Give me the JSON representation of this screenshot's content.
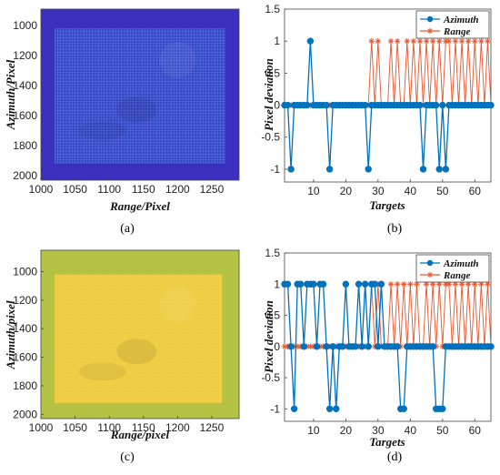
{
  "chart_data": [
    {
      "panel": "a",
      "type": "heatmap",
      "caption": "(a)",
      "xlabel": "Range/Pixel",
      "ylabel": "Azimuth/Pixel",
      "xlim": [
        1000,
        1290
      ],
      "ylim": [
        2030,
        890
      ],
      "xticks": [
        1000,
        1050,
        1100,
        1150,
        1200,
        1250
      ],
      "yticks": [
        1000,
        1200,
        1400,
        1600,
        1800,
        2000
      ],
      "inner_box": {
        "x": [
          1020,
          1270
        ],
        "y": [
          1020,
          1920
        ]
      },
      "colors": {
        "background": "#3a2fbf",
        "grid": "#5aa6e6",
        "inner": "#3d45c8"
      }
    },
    {
      "panel": "b",
      "type": "line",
      "caption": "(b)",
      "xlabel": "Targets",
      "ylabel": "Pixel deviation",
      "xlim": [
        1,
        65
      ],
      "ylim": [
        -1.2,
        1.5
      ],
      "xticks": [
        10,
        20,
        30,
        40,
        50,
        60
      ],
      "yticks": [
        -1,
        -0.5,
        0,
        0.5,
        1,
        1.5
      ],
      "legend": "top-right",
      "series": [
        {
          "name": "Azimuth",
          "color": "#0072bd",
          "marker": "circle",
          "values": [
            0,
            0,
            -1,
            0,
            0,
            0,
            0,
            0,
            1,
            0,
            0,
            0,
            0,
            0,
            -1,
            0,
            0,
            0,
            0,
            0,
            0,
            0,
            0,
            0,
            0,
            0,
            -1,
            0,
            0,
            0,
            0,
            0,
            0,
            0,
            0,
            0,
            0,
            0,
            0,
            0,
            0,
            0,
            0,
            -1,
            0,
            0,
            0,
            0,
            -1,
            0,
            -1,
            0,
            0,
            0,
            0,
            0,
            0,
            0,
            0,
            0,
            0,
            0,
            0,
            0,
            0
          ]
        },
        {
          "name": "Range",
          "color": "#e8542c",
          "marker": "star",
          "values": [
            0,
            0,
            0,
            0,
            0,
            0,
            0,
            0,
            0,
            0,
            0,
            0,
            0,
            0,
            0,
            0,
            0,
            0,
            0,
            0,
            0,
            0,
            0,
            0,
            0,
            0,
            0,
            1,
            0,
            1,
            0,
            0,
            0,
            1,
            0,
            1,
            0,
            0,
            1,
            0,
            1,
            0,
            1,
            0,
            1,
            0,
            1,
            0,
            1,
            0,
            1,
            1,
            0,
            1,
            0,
            1,
            0,
            1,
            0,
            1,
            0,
            1,
            0,
            1,
            0
          ]
        }
      ]
    },
    {
      "panel": "c",
      "type": "heatmap",
      "caption": "(c)",
      "xlabel": "Range/pixel",
      "ylabel": "Azimuth/pixel",
      "xlim": [
        1000,
        1290
      ],
      "ylim": [
        2030,
        850
      ],
      "xticks": [
        1000,
        1050,
        1100,
        1150,
        1200,
        1250
      ],
      "yticks": [
        1000,
        1200,
        1400,
        1600,
        1800,
        2000
      ],
      "inner_box": {
        "x": [
          1020,
          1265
        ],
        "y": [
          1020,
          1920
        ]
      },
      "colors": {
        "background": "#b5c345",
        "grid": "#e8c24a",
        "inner": "#f1cf45"
      }
    },
    {
      "panel": "d",
      "type": "line",
      "caption": "(d)",
      "xlabel": "Targets",
      "ylabel": "Pixel deviation",
      "xlim": [
        1,
        65
      ],
      "ylim": [
        -1.2,
        1.5
      ],
      "xticks": [
        10,
        20,
        30,
        40,
        50,
        60
      ],
      "yticks": [
        -1,
        -0.5,
        0,
        0.5,
        1,
        1.5
      ],
      "legend": "top-right",
      "series": [
        {
          "name": "Azimuth",
          "color": "#0072bd",
          "marker": "circle",
          "values": [
            1,
            1,
            0,
            -1,
            1,
            1,
            0,
            1,
            1,
            1,
            0,
            1,
            1,
            0,
            -1,
            0,
            -1,
            0,
            0,
            1,
            0,
            0,
            0,
            1,
            0,
            1,
            0,
            1,
            1,
            0,
            1,
            0,
            0,
            0,
            0,
            0,
            -1,
            -1,
            0,
            0,
            0,
            0,
            0,
            0,
            0,
            0,
            0,
            -1,
            -1,
            -1,
            0,
            0,
            0,
            0,
            0,
            0,
            0,
            0,
            0,
            0,
            0,
            0,
            0,
            0,
            0
          ]
        },
        {
          "name": "Range",
          "color": "#e8542c",
          "marker": "star",
          "values": [
            0,
            0,
            0,
            0,
            0,
            0,
            0,
            0,
            0,
            0,
            0,
            0,
            0,
            0,
            0,
            0,
            0,
            0,
            0,
            0,
            0,
            0,
            0,
            0,
            0,
            0,
            0,
            1,
            0,
            1,
            0,
            0,
            0,
            1,
            0,
            1,
            0,
            1,
            0,
            1,
            0,
            1,
            0,
            0,
            1,
            0,
            1,
            0,
            1,
            0,
            1,
            1,
            0,
            1,
            0,
            1,
            0,
            1,
            0,
            1,
            0,
            1,
            0,
            1,
            0
          ]
        }
      ]
    }
  ]
}
